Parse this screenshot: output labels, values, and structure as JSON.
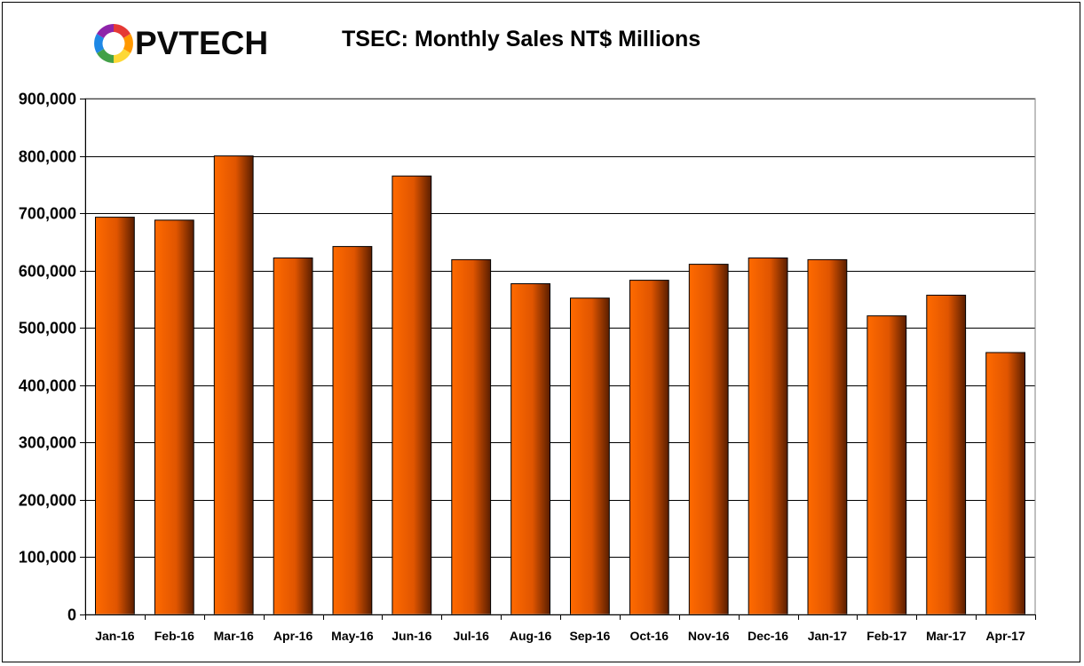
{
  "logo": {
    "brand_text": "PVTECH",
    "colors": [
      "#e53935",
      "#ff9800",
      "#fdd835",
      "#43a047",
      "#1e88e5",
      "#8e24aa"
    ]
  },
  "chart_data": {
    "type": "bar",
    "title": "TSEC: Monthly Sales NT$ Millions",
    "xlabel": "",
    "ylabel": "",
    "categories": [
      "Jan-16",
      "Feb-16",
      "Mar-16",
      "Apr-16",
      "May-16",
      "Jun-16",
      "Jul-16",
      "Aug-16",
      "Sep-16",
      "Oct-16",
      "Nov-16",
      "Dec-16",
      "Jan-17",
      "Feb-17",
      "Mar-17",
      "Apr-17"
    ],
    "values": [
      693000,
      688000,
      800000,
      622000,
      642000,
      765000,
      619000,
      577000,
      552000,
      583000,
      611000,
      622000,
      619000,
      521000,
      557000,
      457000
    ],
    "ylim": [
      0,
      900000
    ],
    "yticks": [
      0,
      100000,
      200000,
      300000,
      400000,
      500000,
      600000,
      700000,
      800000,
      900000
    ],
    "ytick_labels": [
      "0",
      "100,000",
      "200,000",
      "300,000",
      "400,000",
      "500,000",
      "600,000",
      "700,000",
      "800,000",
      "900,000"
    ],
    "grid": true,
    "bar_color_light": "#ff6a00",
    "bar_color_dark": "#5a1e00",
    "legend": "none"
  }
}
